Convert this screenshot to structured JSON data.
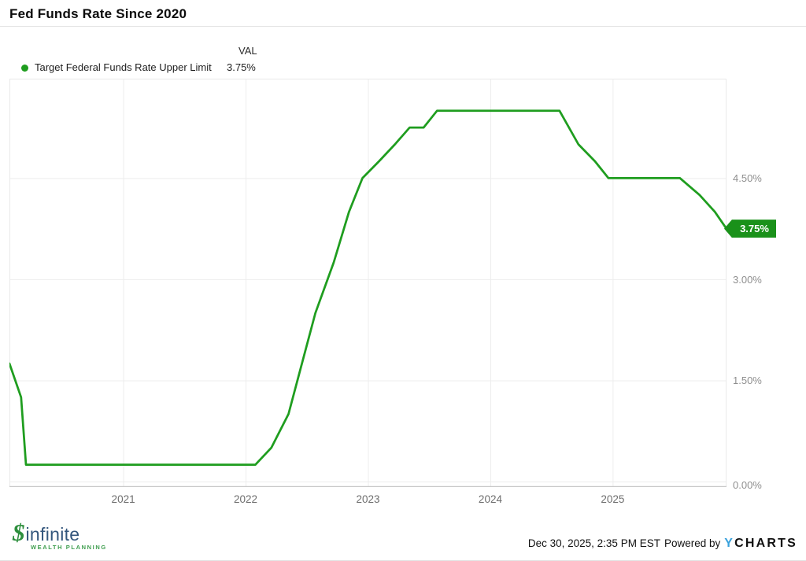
{
  "header": {
    "title": "Fed Funds Rate Since 2020"
  },
  "legend": {
    "val_header": "VAL",
    "series_label": "Target Federal Funds Rate Upper Limit",
    "series_value": "3.75%"
  },
  "chart_data": {
    "type": "line",
    "title": "Fed Funds Rate Since 2020",
    "unit": "%",
    "grid": true,
    "legend_position": "top-left",
    "xlim": [
      2020.07,
      2025.93
    ],
    "ylim": [
      -0.082,
      5.975
    ],
    "series": [
      {
        "name": "Target Federal Funds Rate Upper Limit",
        "color": "#1f9d1f",
        "points": [
          [
            2020.07,
            1.75
          ],
          [
            2020.165,
            1.25
          ],
          [
            2020.205,
            0.25
          ],
          [
            2022.08,
            0.25
          ],
          [
            2022.21,
            0.5
          ],
          [
            2022.35,
            1.0
          ],
          [
            2022.46,
            1.75
          ],
          [
            2022.57,
            2.5
          ],
          [
            2022.72,
            3.25
          ],
          [
            2022.845,
            4.0
          ],
          [
            2022.955,
            4.5
          ],
          [
            2023.09,
            4.75
          ],
          [
            2023.22,
            5.0
          ],
          [
            2023.34,
            5.25
          ],
          [
            2023.455,
            5.25
          ],
          [
            2023.565,
            5.5
          ],
          [
            2024.565,
            5.5
          ],
          [
            2024.72,
            5.0
          ],
          [
            2024.855,
            4.75
          ],
          [
            2024.965,
            4.5
          ],
          [
            2025.55,
            4.5
          ],
          [
            2025.71,
            4.25
          ],
          [
            2025.835,
            4.0
          ],
          [
            2025.93,
            3.75
          ]
        ]
      }
    ],
    "x_ticks": [
      {
        "label": "2021",
        "value": 2021
      },
      {
        "label": "2022",
        "value": 2022
      },
      {
        "label": "2023",
        "value": 2023
      },
      {
        "label": "2024",
        "value": 2024
      },
      {
        "label": "2025",
        "value": 2025
      }
    ],
    "y_ticks": [
      {
        "label": "4.50%",
        "value": 4.5
      },
      {
        "label": "3.00%",
        "value": 3.0
      },
      {
        "label": "1.50%",
        "value": 1.5
      },
      {
        "label": "0.00%",
        "value": 0.0
      }
    ],
    "end_label": "3.75%"
  },
  "colors": {
    "line": "#1f9d1f",
    "badge": "#1a911a",
    "gridline": "#ededed",
    "plot_border": "#e9e9e9",
    "axis_line": "#c9c9c9"
  },
  "footer": {
    "logo_brand": "infinite",
    "logo_glyph": "$",
    "logo_tagline": "WEALTH PLANNING",
    "timestamp": "Dec 30, 2025, 2:35 PM EST",
    "powered_by": "Powered by",
    "provider_y": "Y",
    "provider_rest": "CHARTS"
  }
}
